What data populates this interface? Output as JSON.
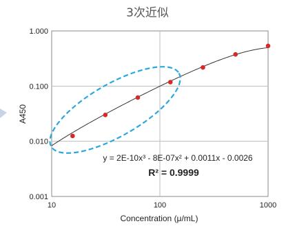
{
  "chart_data": {
    "type": "scatter",
    "title": "3次近似",
    "xlabel": "Concentration (μ/mL)",
    "ylabel": "A450",
    "xscale": "log",
    "yscale": "log",
    "xlim": [
      10,
      1000
    ],
    "ylim": [
      0.001,
      1.0
    ],
    "x_ticks": [
      "10",
      "100",
      "1000"
    ],
    "y_ticks": [
      "0.001",
      "0.010",
      "0.100",
      "1.000"
    ],
    "grid": true,
    "x": [
      15.6,
      31.3,
      62.5,
      125,
      250,
      500,
      1000
    ],
    "y": [
      0.0125,
      0.03,
      0.062,
      0.118,
      0.218,
      0.375,
      0.535
    ],
    "point_color": "#d42a2a",
    "trendline": {
      "type": "polynomial-3",
      "equation": "y = 2E-10x³ - 8E-07x² + 0.0011x - 0.0026",
      "r_squared": "R² = 0.9999",
      "coefficients": [
        2e-10,
        -8e-07,
        0.0011,
        -0.0026
      ],
      "color": "#333333"
    },
    "annotation": {
      "shape": "dashed-ellipse",
      "color": "#29a8e0",
      "x_range": [
        10,
        160
      ]
    }
  }
}
